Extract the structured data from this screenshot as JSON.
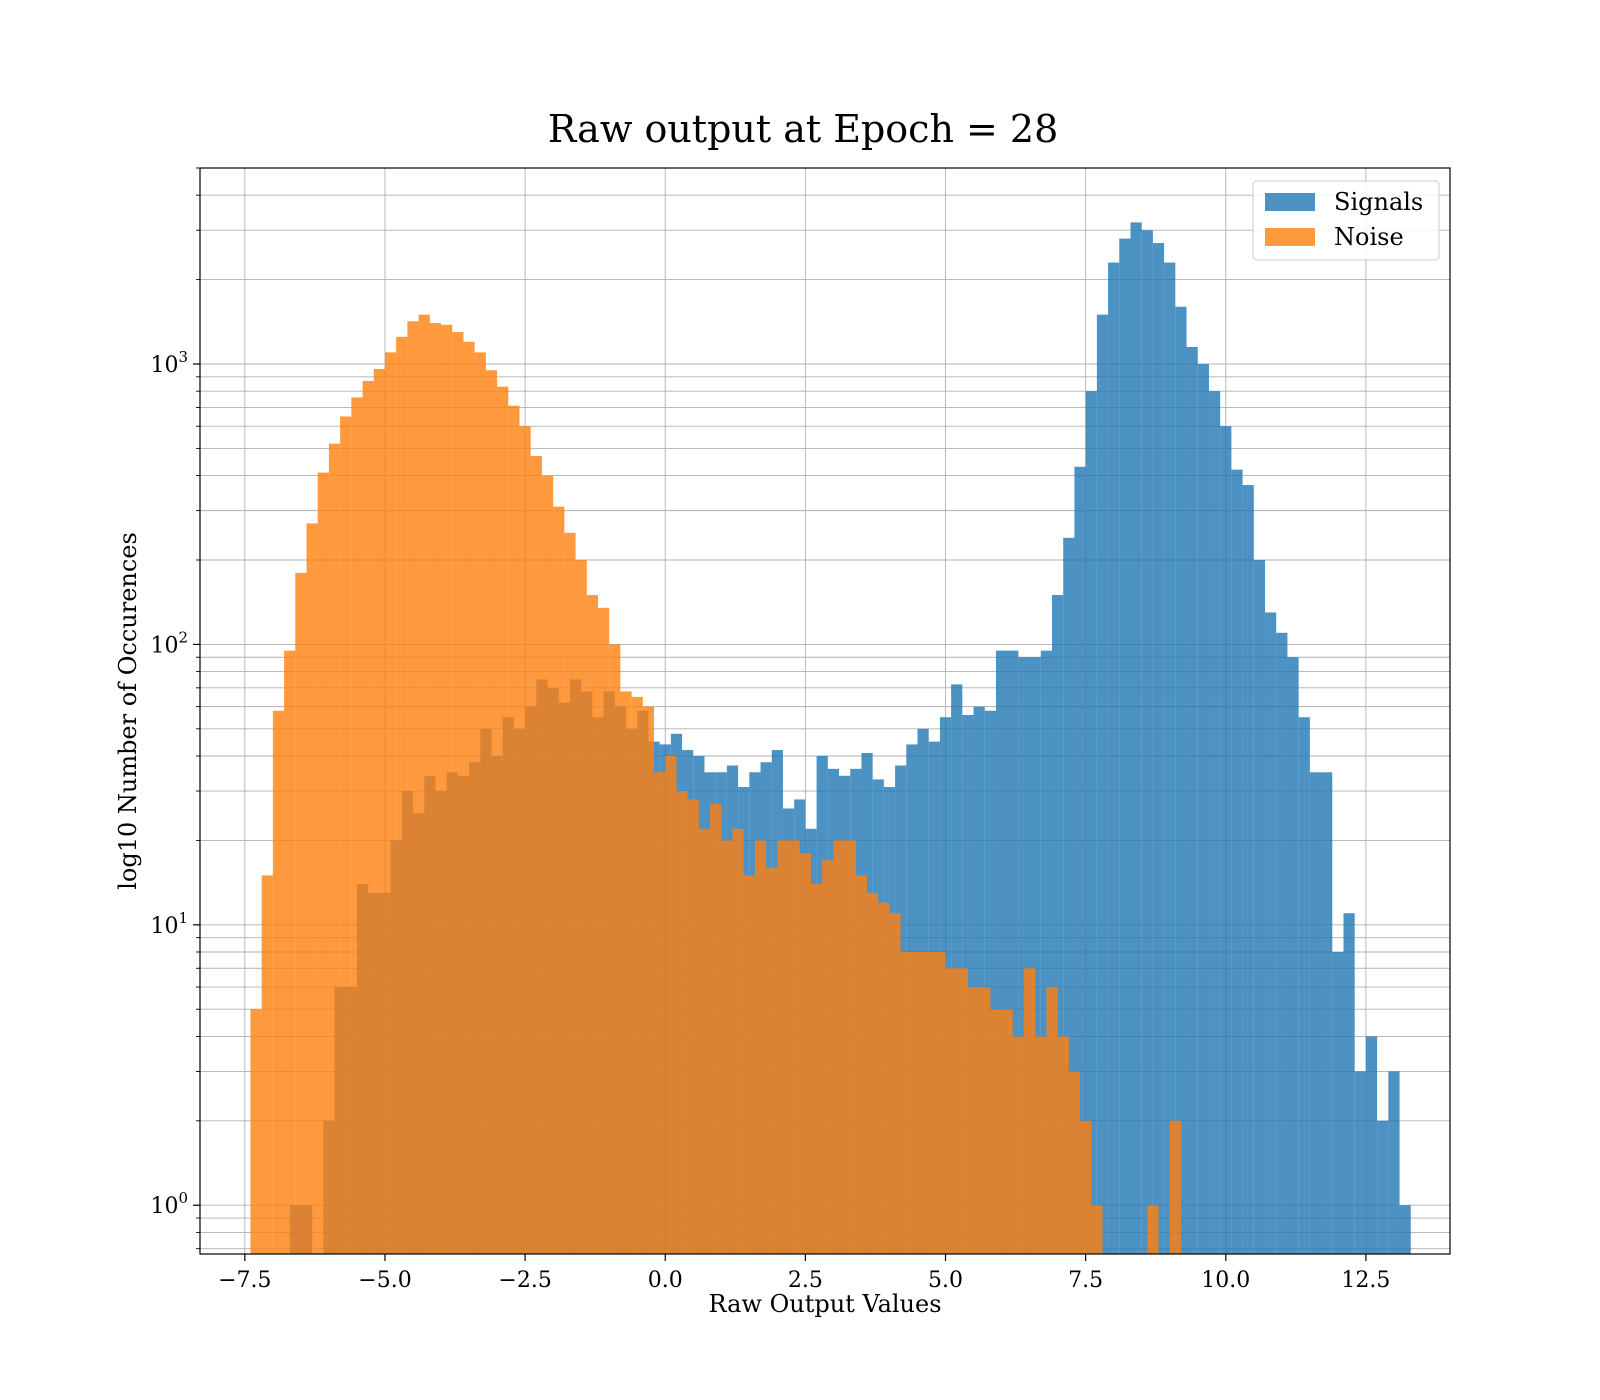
{
  "chart_data": {
    "type": "bar",
    "title": "Raw output at Epoch = 28",
    "xlabel": "Raw Output Values",
    "ylabel": "log10 Number of Occurences",
    "yscale": "log",
    "xlim": [
      -8.3,
      14.0
    ],
    "ylim": [
      0.67,
      5000
    ],
    "grid": true,
    "legend_position": "top-right",
    "x_ticks": [
      -7.5,
      -5.0,
      -2.5,
      0.0,
      2.5,
      5.0,
      7.5,
      10.0,
      12.5
    ],
    "x_tick_labels": [
      "−7.5",
      "−5.0",
      "−2.5",
      "0.0",
      "2.5",
      "5.0",
      "7.5",
      "10.0",
      "12.5"
    ],
    "y_ticks": [
      {
        "value": 1,
        "base": "10",
        "exp": "0"
      },
      {
        "value": 10,
        "base": "10",
        "exp": "1"
      },
      {
        "value": 100,
        "base": "10",
        "exp": "2"
      },
      {
        "value": 1000,
        "base": "10",
        "exp": "3"
      }
    ],
    "series": [
      {
        "name": "Signals",
        "color": "#1f77b4",
        "bins": [
          [
            -6.7,
            -6.3,
            1
          ],
          [
            -6.1,
            -5.9,
            2
          ],
          [
            -5.9,
            -5.5,
            6
          ],
          [
            -5.5,
            -5.3,
            14
          ],
          [
            -5.3,
            -4.9,
            13
          ],
          [
            -4.9,
            -4.7,
            20
          ],
          [
            -4.7,
            -4.5,
            30
          ],
          [
            -4.5,
            -4.3,
            25
          ],
          [
            -4.3,
            -4.1,
            34
          ],
          [
            -4.1,
            -3.9,
            30
          ],
          [
            -3.9,
            -3.7,
            35
          ],
          [
            -3.7,
            -3.5,
            34
          ],
          [
            -3.5,
            -3.3,
            38
          ],
          [
            -3.3,
            -3.1,
            50
          ],
          [
            -3.1,
            -2.9,
            40
          ],
          [
            -2.9,
            -2.7,
            55
          ],
          [
            -2.7,
            -2.5,
            50
          ],
          [
            -2.5,
            -2.3,
            60
          ],
          [
            -2.3,
            -2.1,
            75
          ],
          [
            -2.1,
            -1.9,
            70
          ],
          [
            -1.9,
            -1.7,
            62
          ],
          [
            -1.7,
            -1.5,
            75
          ],
          [
            -1.5,
            -1.3,
            68
          ],
          [
            -1.3,
            -1.1,
            55
          ],
          [
            -1.1,
            -0.9,
            68
          ],
          [
            -0.9,
            -0.7,
            60
          ],
          [
            -0.7,
            -0.5,
            50
          ],
          [
            -0.5,
            -0.3,
            58
          ],
          [
            -0.3,
            -0.1,
            45
          ],
          [
            -0.1,
            0.1,
            44
          ],
          [
            0.1,
            0.3,
            48
          ],
          [
            0.3,
            0.5,
            42
          ],
          [
            0.5,
            0.7,
            40
          ],
          [
            0.7,
            0.9,
            35
          ],
          [
            0.9,
            1.1,
            35
          ],
          [
            1.1,
            1.3,
            37
          ],
          [
            1.3,
            1.5,
            31
          ],
          [
            1.5,
            1.7,
            35
          ],
          [
            1.7,
            1.9,
            38
          ],
          [
            1.9,
            2.1,
            42
          ],
          [
            2.1,
            2.3,
            26
          ],
          [
            2.3,
            2.5,
            28
          ],
          [
            2.5,
            2.7,
            22
          ],
          [
            2.7,
            2.9,
            40
          ],
          [
            2.9,
            3.1,
            36
          ],
          [
            3.1,
            3.3,
            34
          ],
          [
            3.3,
            3.5,
            36
          ],
          [
            3.5,
            3.7,
            41
          ],
          [
            3.7,
            3.9,
            33
          ],
          [
            3.9,
            4.1,
            31
          ],
          [
            4.1,
            4.3,
            37
          ],
          [
            4.3,
            4.5,
            44
          ],
          [
            4.5,
            4.7,
            50
          ],
          [
            4.7,
            4.9,
            45
          ],
          [
            4.9,
            5.1,
            55
          ],
          [
            5.1,
            5.3,
            72
          ],
          [
            5.3,
            5.5,
            56
          ],
          [
            5.5,
            5.7,
            60
          ],
          [
            5.7,
            5.9,
            58
          ],
          [
            5.9,
            6.3,
            95
          ],
          [
            6.3,
            6.7,
            90
          ],
          [
            6.7,
            6.9,
            95
          ],
          [
            6.9,
            7.1,
            150
          ],
          [
            7.1,
            7.3,
            240
          ],
          [
            7.3,
            7.5,
            430
          ],
          [
            7.5,
            7.7,
            800
          ],
          [
            7.7,
            7.9,
            1500
          ],
          [
            7.9,
            8.1,
            2300
          ],
          [
            8.1,
            8.3,
            2800
          ],
          [
            8.3,
            8.5,
            3200
          ],
          [
            8.5,
            8.7,
            3000
          ],
          [
            8.7,
            8.9,
            2700
          ],
          [
            8.9,
            9.1,
            2300
          ],
          [
            9.1,
            9.3,
            1600
          ],
          [
            9.3,
            9.5,
            1150
          ],
          [
            9.5,
            9.7,
            1000
          ],
          [
            9.7,
            9.9,
            800
          ],
          [
            9.9,
            10.1,
            600
          ],
          [
            10.1,
            10.3,
            420
          ],
          [
            10.3,
            10.5,
            370
          ],
          [
            10.5,
            10.7,
            200
          ],
          [
            10.7,
            10.9,
            130
          ],
          [
            10.9,
            11.1,
            110
          ],
          [
            11.1,
            11.3,
            90
          ],
          [
            11.3,
            11.5,
            55
          ],
          [
            11.5,
            11.7,
            35
          ],
          [
            11.7,
            11.9,
            35
          ],
          [
            11.9,
            12.1,
            8
          ],
          [
            12.1,
            12.3,
            11
          ],
          [
            12.3,
            12.5,
            3
          ],
          [
            12.5,
            12.7,
            4
          ],
          [
            12.7,
            12.9,
            2
          ],
          [
            12.9,
            13.1,
            3
          ],
          [
            13.1,
            13.3,
            1
          ]
        ]
      },
      {
        "name": "Noise",
        "color": "#ff7f0e",
        "bins": [
          [
            -7.4,
            -7.2,
            5
          ],
          [
            -7.2,
            -7.0,
            15
          ],
          [
            -7.0,
            -6.8,
            58
          ],
          [
            -6.8,
            -6.6,
            95
          ],
          [
            -6.6,
            -6.4,
            180
          ],
          [
            -6.4,
            -6.2,
            270
          ],
          [
            -6.2,
            -6.0,
            410
          ],
          [
            -6.0,
            -5.8,
            520
          ],
          [
            -5.8,
            -5.6,
            650
          ],
          [
            -5.6,
            -5.4,
            760
          ],
          [
            -5.4,
            -5.2,
            870
          ],
          [
            -5.2,
            -5.0,
            960
          ],
          [
            -5.0,
            -4.8,
            1100
          ],
          [
            -4.8,
            -4.6,
            1250
          ],
          [
            -4.6,
            -4.4,
            1420
          ],
          [
            -4.4,
            -4.2,
            1500
          ],
          [
            -4.2,
            -4.0,
            1400
          ],
          [
            -4.0,
            -3.8,
            1380
          ],
          [
            -3.8,
            -3.6,
            1300
          ],
          [
            -3.6,
            -3.4,
            1200
          ],
          [
            -3.4,
            -3.2,
            1100
          ],
          [
            -3.2,
            -3.0,
            950
          ],
          [
            -3.0,
            -2.8,
            830
          ],
          [
            -2.8,
            -2.6,
            710
          ],
          [
            -2.6,
            -2.4,
            600
          ],
          [
            -2.4,
            -2.2,
            470
          ],
          [
            -2.2,
            -2.0,
            400
          ],
          [
            -2.0,
            -1.8,
            310
          ],
          [
            -1.8,
            -1.6,
            250
          ],
          [
            -1.6,
            -1.4,
            200
          ],
          [
            -1.4,
            -1.2,
            150
          ],
          [
            -1.2,
            -1.0,
            135
          ],
          [
            -1.0,
            -0.8,
            100
          ],
          [
            -0.8,
            -0.6,
            68
          ],
          [
            -0.6,
            -0.4,
            65
          ],
          [
            -0.4,
            -0.2,
            60
          ],
          [
            -0.2,
            0.0,
            35
          ],
          [
            0.0,
            0.2,
            40
          ],
          [
            0.2,
            0.4,
            30
          ],
          [
            0.4,
            0.6,
            28
          ],
          [
            0.6,
            0.8,
            22
          ],
          [
            0.8,
            1.0,
            27
          ],
          [
            1.0,
            1.2,
            20
          ],
          [
            1.2,
            1.4,
            22
          ],
          [
            1.4,
            1.6,
            15
          ],
          [
            1.6,
            1.8,
            20
          ],
          [
            1.8,
            2.0,
            16
          ],
          [
            2.0,
            2.2,
            20
          ],
          [
            2.2,
            2.4,
            20
          ],
          [
            2.4,
            2.6,
            18
          ],
          [
            2.6,
            2.8,
            14
          ],
          [
            2.8,
            3.0,
            17
          ],
          [
            3.0,
            3.2,
            20
          ],
          [
            3.2,
            3.4,
            20
          ],
          [
            3.4,
            3.6,
            15
          ],
          [
            3.6,
            3.8,
            13
          ],
          [
            3.8,
            4.0,
            12
          ],
          [
            4.0,
            4.2,
            11
          ],
          [
            4.2,
            4.4,
            8
          ],
          [
            4.4,
            4.6,
            8
          ],
          [
            4.6,
            4.8,
            8
          ],
          [
            4.8,
            5.0,
            8
          ],
          [
            5.0,
            5.2,
            7
          ],
          [
            5.2,
            5.4,
            7
          ],
          [
            5.4,
            5.6,
            6
          ],
          [
            5.6,
            5.8,
            6
          ],
          [
            5.8,
            6.0,
            5
          ],
          [
            6.0,
            6.2,
            5
          ],
          [
            6.2,
            6.4,
            4
          ],
          [
            6.4,
            6.6,
            7
          ],
          [
            6.6,
            6.8,
            4
          ],
          [
            6.8,
            7.0,
            6
          ],
          [
            7.0,
            7.2,
            4
          ],
          [
            7.2,
            7.4,
            3
          ],
          [
            7.4,
            7.6,
            2
          ],
          [
            7.6,
            7.8,
            1
          ],
          [
            8.6,
            8.8,
            1
          ],
          [
            9.0,
            9.2,
            2
          ]
        ]
      }
    ]
  }
}
